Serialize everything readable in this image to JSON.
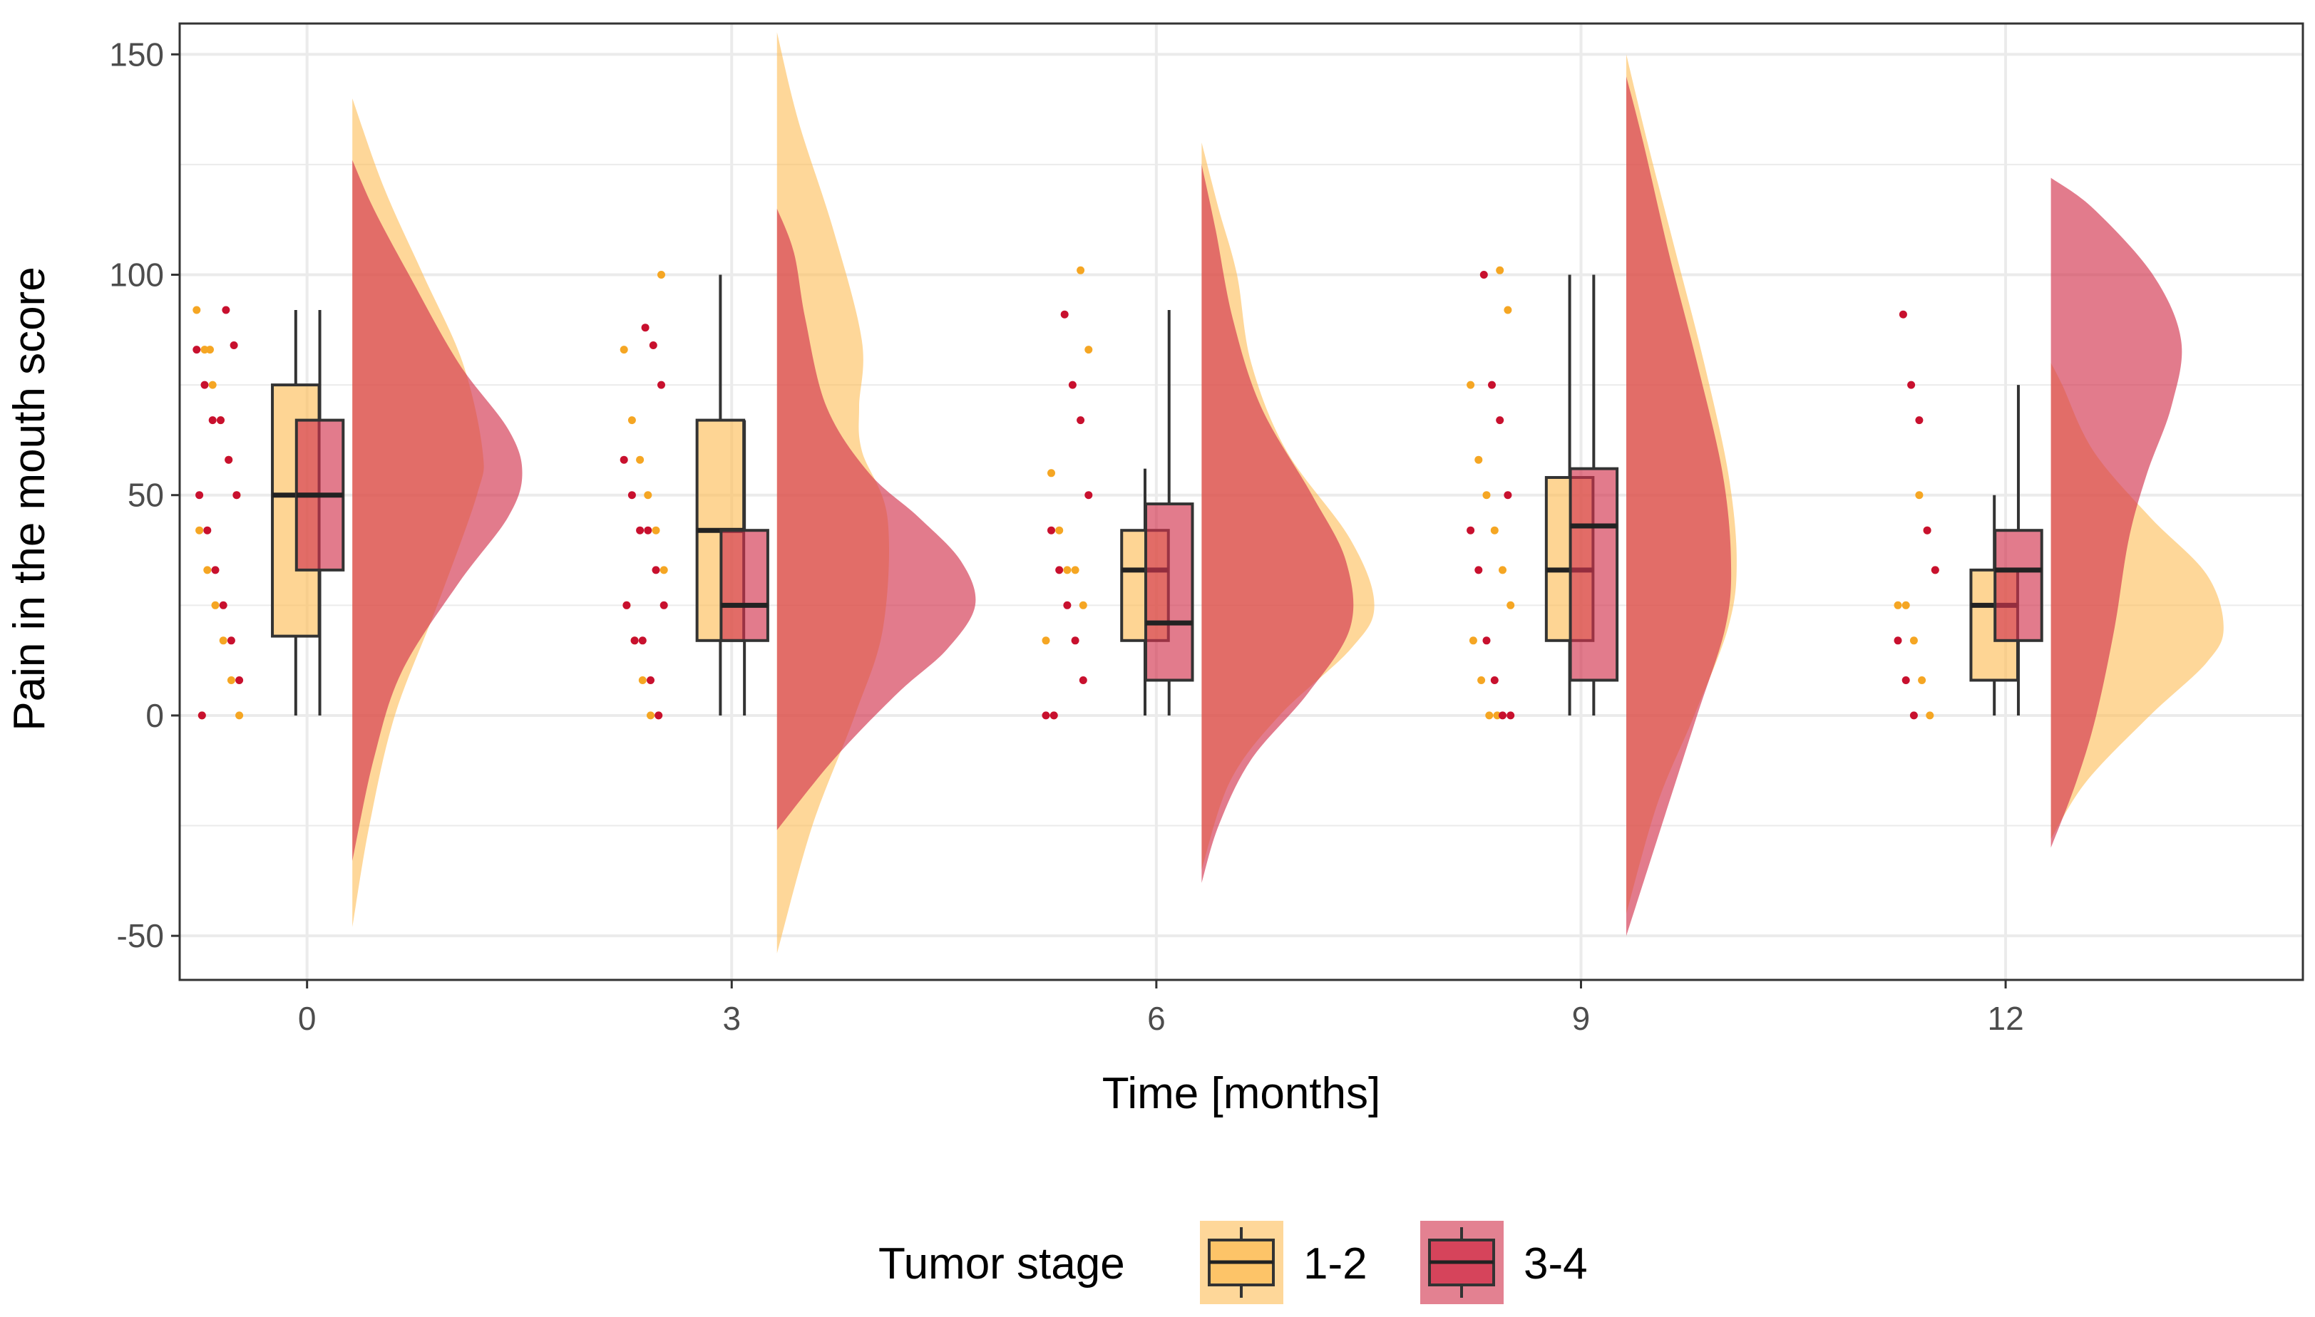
{
  "chart_data": {
    "type": "raincloud",
    "xlabel": "Time [months]",
    "ylabel": "Pain in the mouth score",
    "x_ticks": [
      0,
      3,
      6,
      9,
      12
    ],
    "y_ticks": [
      -50,
      0,
      50,
      100,
      150
    ],
    "xlim": [
      -0.9,
      14.1
    ],
    "ylim": [
      -60,
      157
    ],
    "grid": true,
    "legend": {
      "title": "Tumor stage",
      "position": "bottom",
      "entries": [
        "1-2",
        "3-4"
      ]
    },
    "series": [
      {
        "name": "1-2",
        "color": "#FDBF5B",
        "boxes": [
          {
            "time": 0,
            "min": 0,
            "q1": 18,
            "median": 50,
            "q3": 75,
            "max": 92
          },
          {
            "time": 3,
            "min": 0,
            "q1": 17,
            "median": 42,
            "q3": 67,
            "max": 100
          },
          {
            "time": 6,
            "min": 0,
            "q1": 17,
            "median": 33,
            "q3": 42,
            "max": 56
          },
          {
            "time": 9,
            "min": 0,
            "q1": 17,
            "median": 33,
            "q3": 54,
            "max": 100
          },
          {
            "time": 12,
            "min": 0,
            "q1": 8,
            "median": 25,
            "q3": 33,
            "max": 50
          }
        ],
        "densities": [
          {
            "time": 0,
            "min": -48,
            "max": 140,
            "peak_y": 40,
            "peak_x": 0.9,
            "shape": [
              [
                -48,
                0
              ],
              [
                -25,
                0.12
              ],
              [
                0,
                0.3
              ],
              [
                25,
                0.6
              ],
              [
                50,
                0.88
              ],
              [
                60,
                0.92
              ],
              [
                80,
                0.78
              ],
              [
                100,
                0.5
              ],
              [
                120,
                0.22
              ],
              [
                140,
                0
              ]
            ]
          },
          {
            "time": 3,
            "min": -54,
            "max": 155,
            "peak_y": 45,
            "peak_x": 0.8,
            "shape": [
              [
                -54,
                0
              ],
              [
                -25,
                0.25
              ],
              [
                0,
                0.55
              ],
              [
                20,
                0.75
              ],
              [
                45,
                0.78
              ],
              [
                60,
                0.6
              ],
              [
                70,
                0.58
              ],
              [
                85,
                0.6
              ],
              [
                110,
                0.4
              ],
              [
                135,
                0.15
              ],
              [
                155,
                0
              ]
            ]
          },
          {
            "time": 6,
            "min": -35,
            "max": 130,
            "peak_y": 25,
            "peak_x": 1.3,
            "shape": [
              [
                -35,
                0
              ],
              [
                -15,
                0.2
              ],
              [
                0,
                0.55
              ],
              [
                15,
                1.05
              ],
              [
                25,
                1.22
              ],
              [
                40,
                1.05
              ],
              [
                60,
                0.6
              ],
              [
                80,
                0.35
              ],
              [
                100,
                0.25
              ],
              [
                115,
                0.12
              ],
              [
                130,
                0
              ]
            ]
          },
          {
            "time": 9,
            "min": -45,
            "max": 150,
            "peak_y": 30,
            "peak_x": 0.8,
            "shape": [
              [
                -45,
                0
              ],
              [
                -20,
                0.22
              ],
              [
                0,
                0.48
              ],
              [
                20,
                0.72
              ],
              [
                35,
                0.78
              ],
              [
                55,
                0.72
              ],
              [
                80,
                0.55
              ],
              [
                105,
                0.35
              ],
              [
                130,
                0.15
              ],
              [
                150,
                0
              ]
            ]
          },
          {
            "time": 12,
            "min": -28,
            "max": 80,
            "peak_y": 20,
            "peak_x": 1.3,
            "shape": [
              [
                -28,
                0
              ],
              [
                -15,
                0.25
              ],
              [
                0,
                0.7
              ],
              [
                12,
                1.1
              ],
              [
                20,
                1.22
              ],
              [
                32,
                1.1
              ],
              [
                45,
                0.7
              ],
              [
                60,
                0.3
              ],
              [
                75,
                0.08
              ],
              [
                80,
                0
              ]
            ]
          }
        ],
        "points": [
          {
            "time": 0,
            "y": [
              92,
              83,
              75,
              67,
              58,
              50,
              42,
              33,
              25,
              17,
              8,
              0,
              0,
              83
            ]
          },
          {
            "time": 3,
            "y": [
              100,
              83,
              67,
              58,
              50,
              42,
              33,
              25,
              17,
              8,
              0,
              0
            ]
          },
          {
            "time": 6,
            "y": [
              101,
              83,
              55,
              42,
              33,
              33,
              25,
              17,
              0
            ]
          },
          {
            "time": 9,
            "y": [
              101,
              92,
              75,
              58,
              50,
              42,
              33,
              25,
              17,
              8,
              0,
              0
            ]
          },
          {
            "time": 12,
            "y": [
              50,
              42,
              33,
              25,
              25,
              17,
              8,
              0
            ]
          }
        ]
      },
      {
        "name": "3-4",
        "color": "#D2344E",
        "boxes": [
          {
            "time": 0,
            "min": 0,
            "q1": 33,
            "median": 50,
            "q3": 67,
            "max": 92
          },
          {
            "time": 3,
            "min": 0,
            "q1": 17,
            "median": 25,
            "q3": 42,
            "max": 67
          },
          {
            "time": 6,
            "min": 0,
            "q1": 8,
            "median": 21,
            "q3": 48,
            "max": 92
          },
          {
            "time": 9,
            "min": 0,
            "q1": 8,
            "median": 43,
            "q3": 56,
            "max": 100
          },
          {
            "time": 12,
            "min": 0,
            "q1": 17,
            "median": 33,
            "q3": 42,
            "max": 75
          }
        ],
        "densities": [
          {
            "time": 0,
            "min": -33,
            "max": 126,
            "peak_y": 55,
            "peak_x": 1.2,
            "shape": [
              [
                -33,
                0
              ],
              [
                -10,
                0.15
              ],
              [
                10,
                0.35
              ],
              [
                30,
                0.75
              ],
              [
                45,
                1.1
              ],
              [
                55,
                1.2
              ],
              [
                65,
                1.1
              ],
              [
                80,
                0.75
              ],
              [
                100,
                0.4
              ],
              [
                115,
                0.15
              ],
              [
                126,
                0
              ]
            ]
          },
          {
            "time": 3,
            "min": -26,
            "max": 115,
            "peak_y": 25,
            "peak_x": 1.4,
            "shape": [
              [
                -26,
                0
              ],
              [
                -10,
                0.4
              ],
              [
                5,
                0.85
              ],
              [
                15,
                1.2
              ],
              [
                25,
                1.4
              ],
              [
                35,
                1.3
              ],
              [
                45,
                1.0
              ],
              [
                55,
                0.65
              ],
              [
                70,
                0.35
              ],
              [
                90,
                0.2
              ],
              [
                105,
                0.12
              ],
              [
                115,
                0
              ]
            ]
          },
          {
            "time": 6,
            "min": -38,
            "max": 125,
            "peak_y": 20,
            "peak_x": 1.1,
            "shape": [
              [
                -38,
                0
              ],
              [
                -25,
                0.12
              ],
              [
                -10,
                0.35
              ],
              [
                5,
                0.75
              ],
              [
                20,
                1.05
              ],
              [
                35,
                1.02
              ],
              [
                50,
                0.78
              ],
              [
                70,
                0.42
              ],
              [
                90,
                0.22
              ],
              [
                110,
                0.1
              ],
              [
                125,
                0
              ]
            ]
          },
          {
            "time": 9,
            "min": -50,
            "max": 145,
            "peak_y": 25,
            "peak_x": 0.75,
            "shape": [
              [
                -50,
                0
              ],
              [
                -25,
                0.25
              ],
              [
                0,
                0.5
              ],
              [
                20,
                0.7
              ],
              [
                35,
                0.74
              ],
              [
                55,
                0.68
              ],
              [
                80,
                0.5
              ],
              [
                105,
                0.3
              ],
              [
                130,
                0.12
              ],
              [
                145,
                0
              ]
            ]
          },
          {
            "time": 12,
            "min": -30,
            "max": 122,
            "peak_y": 85,
            "peak_x": 1.0,
            "shape": [
              [
                -30,
                0
              ],
              [
                -15,
                0.18
              ],
              [
                0,
                0.32
              ],
              [
                20,
                0.45
              ],
              [
                40,
                0.55
              ],
              [
                55,
                0.68
              ],
              [
                70,
                0.85
              ],
              [
                85,
                0.92
              ],
              [
                100,
                0.72
              ],
              [
                115,
                0.3
              ],
              [
                122,
                0
              ]
            ]
          }
        ],
        "points": [
          {
            "time": 0,
            "y": [
              92,
              84,
              83,
              75,
              67,
              67,
              58,
              50,
              50,
              42,
              33,
              25,
              17,
              8,
              0
            ]
          },
          {
            "time": 3,
            "y": [
              88,
              84,
              75,
              58,
              50,
              42,
              42,
              33,
              25,
              25,
              17,
              17,
              8,
              0
            ]
          },
          {
            "time": 6,
            "y": [
              91,
              75,
              67,
              50,
              42,
              33,
              25,
              17,
              8,
              0,
              0
            ]
          },
          {
            "time": 9,
            "y": [
              100,
              75,
              67,
              50,
              42,
              33,
              17,
              8,
              0,
              0
            ]
          },
          {
            "time": 12,
            "y": [
              91,
              75,
              67,
              42,
              33,
              17,
              8,
              0
            ]
          }
        ]
      }
    ]
  }
}
